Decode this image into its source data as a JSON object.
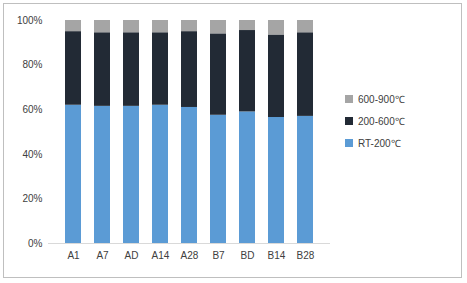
{
  "chart_data": {
    "type": "bar",
    "stacked": true,
    "categories": [
      "A1",
      "A7",
      "AD",
      "A14",
      "A28",
      "B7",
      "BD",
      "B14",
      "B28"
    ],
    "series": [
      {
        "name": "RT-200℃",
        "color": "#5b9bd5",
        "values": [
          62,
          61.5,
          61.5,
          62,
          61,
          57.5,
          59,
          56.5,
          57
        ]
      },
      {
        "name": "200-600℃",
        "color": "#222a35",
        "values": [
          33,
          33,
          33,
          32.5,
          34,
          36.5,
          36.5,
          37,
          37.5
        ]
      },
      {
        "name": "600-900℃",
        "color": "#a5a5a5",
        "values": [
          5,
          5.5,
          5.5,
          5.5,
          5,
          6,
          4.5,
          6.5,
          5.5
        ]
      }
    ],
    "ylim": [
      0,
      100
    ],
    "yticks": [
      {
        "value": 0,
        "label": "0%"
      },
      {
        "value": 20,
        "label": "20%"
      },
      {
        "value": 40,
        "label": "40%"
      },
      {
        "value": 60,
        "label": "60%"
      },
      {
        "value": 80,
        "label": "80%"
      },
      {
        "value": 100,
        "label": "100%"
      }
    ],
    "grid": false,
    "legend": "right"
  }
}
